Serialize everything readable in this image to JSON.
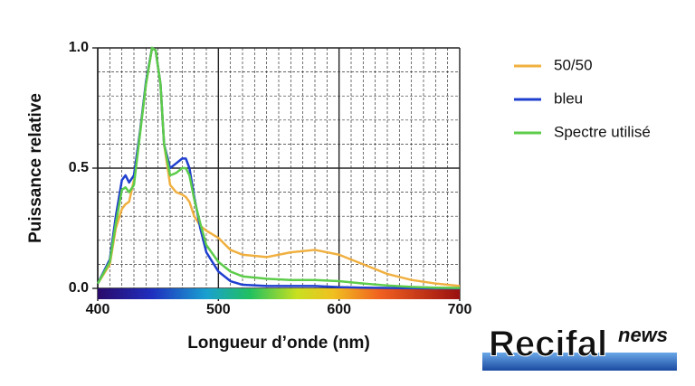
{
  "chart_data": {
    "type": "line",
    "x_label": "Longueur d’onde (nm)",
    "y_label": "Puissance relative",
    "x": [
      400,
      410,
      415,
      420,
      423,
      426,
      430,
      435,
      440,
      445,
      448,
      452,
      455,
      460,
      465,
      470,
      473,
      476,
      480,
      485,
      490,
      500,
      510,
      520,
      540,
      560,
      580,
      600,
      620,
      640,
      660,
      680,
      700
    ],
    "series": [
      {
        "name": "50/50",
        "color": "#f0b040",
        "values": [
          0.02,
          0.1,
          0.25,
          0.33,
          0.35,
          0.36,
          0.45,
          0.65,
          0.85,
          1.0,
          0.99,
          0.85,
          0.6,
          0.43,
          0.4,
          0.39,
          0.38,
          0.36,
          0.3,
          0.26,
          0.24,
          0.21,
          0.16,
          0.14,
          0.13,
          0.15,
          0.16,
          0.14,
          0.1,
          0.06,
          0.035,
          0.02,
          0.01
        ]
      },
      {
        "name": "bleu",
        "color": "#1f3fcf",
        "values": [
          0.02,
          0.12,
          0.3,
          0.45,
          0.47,
          0.44,
          0.47,
          0.65,
          0.86,
          1.0,
          0.99,
          0.85,
          0.6,
          0.5,
          0.52,
          0.54,
          0.54,
          0.5,
          0.38,
          0.25,
          0.15,
          0.07,
          0.03,
          0.015,
          0.01,
          0.01,
          0.01,
          0.005,
          0.003,
          0.002,
          0.001,
          0,
          0
        ]
      },
      {
        "name": "Spectre utilisé",
        "color": "#5ccc4a",
        "values": [
          0.02,
          0.11,
          0.27,
          0.41,
          0.42,
          0.4,
          0.43,
          0.64,
          0.85,
          1.0,
          0.99,
          0.85,
          0.6,
          0.47,
          0.48,
          0.5,
          0.5,
          0.47,
          0.37,
          0.27,
          0.18,
          0.11,
          0.07,
          0.05,
          0.04,
          0.035,
          0.035,
          0.03,
          0.02,
          0.012,
          0.006,
          0.003,
          0.002
        ]
      }
    ],
    "xlim": [
      400,
      700
    ],
    "ylim": [
      0,
      1
    ],
    "xticks": [
      400,
      500,
      600,
      700
    ],
    "yticks": [
      {
        "value": 0,
        "label": "0.0"
      },
      0.5,
      {
        "value": 1,
        "label": "1.0"
      }
    ],
    "grid": true,
    "legend": "right"
  },
  "watermark": {
    "main": "Recifal",
    "sub": "news"
  }
}
